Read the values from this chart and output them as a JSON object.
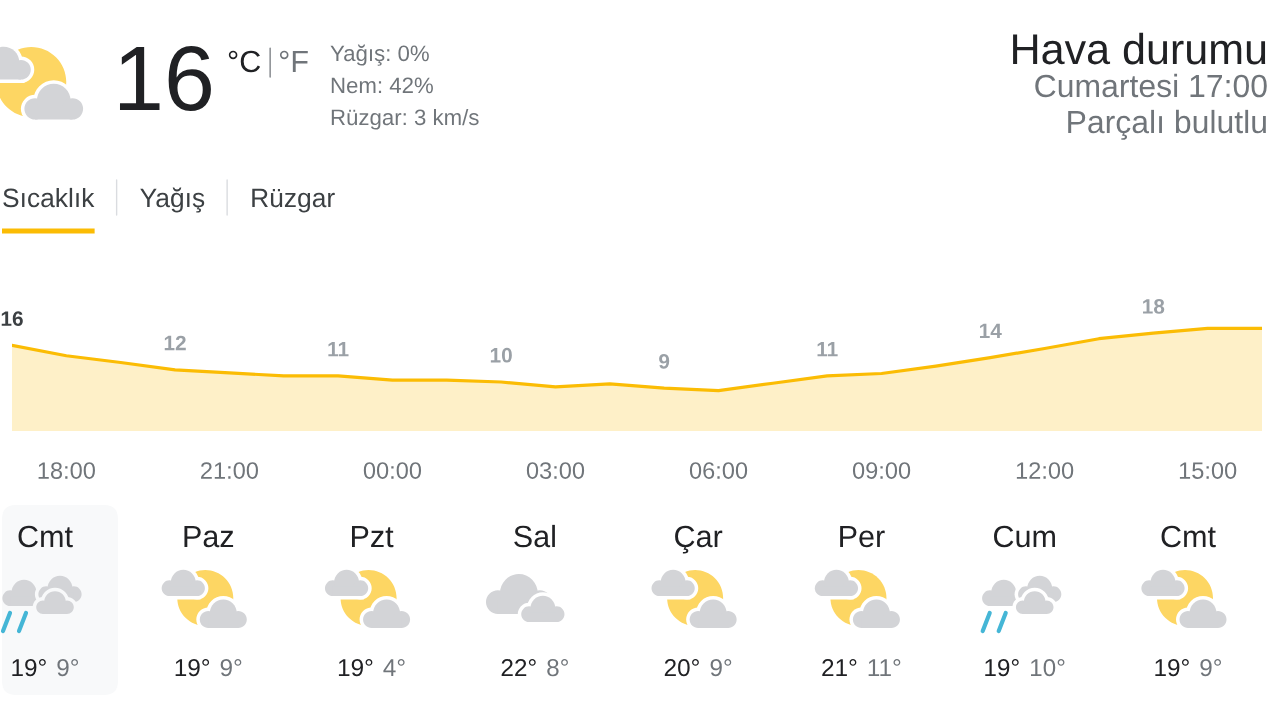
{
  "chart_data": [
    {
      "type": "other",
      "title": "Hava durumu",
      "subtitle": "Cumartesi 17:00",
      "annotations": [
        "16",
        "°C",
        "°F",
        "Yağış: 0%",
        "Nem: 42%",
        "Rüzgar: 3 km/s",
        "Parçalı bulutlu",
        "Sıcaklık",
        "Yağış",
        "Rüzgar"
      ]
    },
    {
      "type": "area",
      "categories": [
        null,
        "18:00",
        null,
        null,
        "21:00",
        null,
        null,
        "00:00",
        null,
        null,
        "03:00",
        null,
        null,
        "06:00",
        null,
        null,
        "09:00",
        null,
        null,
        "12:00",
        null,
        null,
        "15:00",
        null
      ],
      "series": [
        {
          "color": "#fbbc04",
          "values": [
            16,
            14.3,
            13.2,
            12,
            11.5,
            11,
            11,
            10.3,
            10.3,
            10,
            9.2,
            9.7,
            9,
            8.6,
            9.8,
            11,
            11.4,
            12.6,
            14,
            15.5,
            17.1,
            18,
            18.8,
            18.8
          ],
          "value_labels": [
            "16",
            null,
            null,
            "12",
            null,
            null,
            "11",
            null,
            null,
            "10",
            null,
            null,
            "9",
            null,
            null,
            "11",
            null,
            null,
            "14",
            null,
            null,
            "18",
            null,
            null
          ]
        }
      ],
      "tick_labels": "x"
    },
    {
      "type": "other",
      "categories": [
        "Cmt",
        "Paz",
        "Pzt",
        "Sal",
        "Çar",
        "Per",
        "Cum",
        "Cmt"
      ],
      "annotations": [
        "19°",
        "9°",
        "19°",
        "9°",
        "19°",
        "4°",
        "22°",
        "8°",
        "20°",
        "9°",
        "21°",
        "11°",
        "19°",
        "10°",
        "19°",
        "9°"
      ]
    }
  ]
}
